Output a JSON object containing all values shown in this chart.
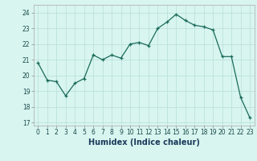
{
  "x": [
    0,
    1,
    2,
    3,
    4,
    5,
    6,
    7,
    8,
    9,
    10,
    11,
    12,
    13,
    14,
    15,
    16,
    17,
    18,
    19,
    20,
    21,
    22,
    23
  ],
  "y": [
    20.8,
    19.7,
    19.6,
    18.7,
    19.5,
    19.8,
    21.3,
    21.0,
    21.3,
    21.1,
    22.0,
    22.1,
    21.9,
    23.0,
    23.4,
    23.9,
    23.5,
    23.2,
    23.1,
    22.9,
    21.2,
    21.2,
    18.6,
    17.3
  ],
  "line_color": "#1a6b5a",
  "marker": "+",
  "bg_color": "#d8f5f0",
  "grid_color": "#b8ddd8",
  "xlabel": "Humidex (Indice chaleur)",
  "ylim": [
    16.8,
    24.5
  ],
  "xlim": [
    -0.5,
    23.5
  ],
  "yticks": [
    17,
    18,
    19,
    20,
    21,
    22,
    23,
    24
  ],
  "xticks": [
    0,
    1,
    2,
    3,
    4,
    5,
    6,
    7,
    8,
    9,
    10,
    11,
    12,
    13,
    14,
    15,
    16,
    17,
    18,
    19,
    20,
    21,
    22,
    23
  ],
  "label_fontsize": 6.5,
  "tick_fontsize": 5.5,
  "xlabel_fontsize": 7.0
}
